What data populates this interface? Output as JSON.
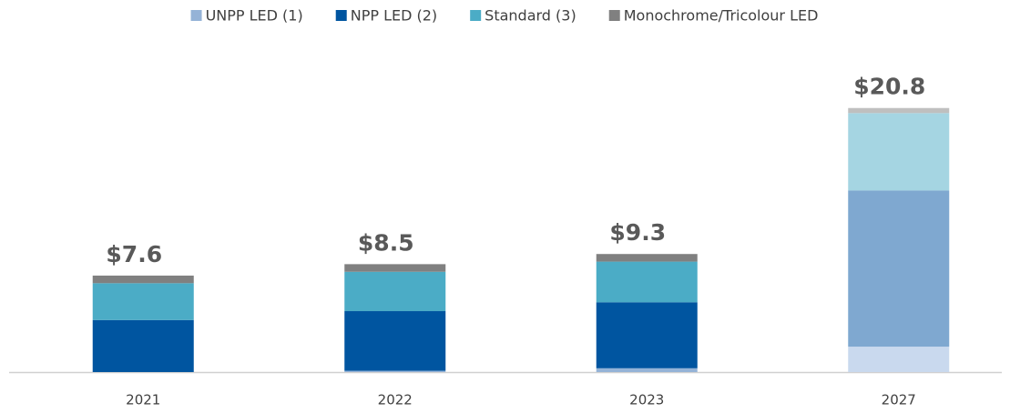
{
  "chart_data": {
    "type": "stacked_bar",
    "categories": [
      "2021",
      "2022",
      "2023",
      "2027"
    ],
    "series": [
      {
        "name": "UNPP LED (1)",
        "color": "#95b3d7",
        "projected_color": "#c9d9ee",
        "values": [
          0,
          0.1,
          0.3,
          2.0
        ]
      },
      {
        "name": "NPP LED (2)",
        "color": "#0055a0",
        "projected_color": "#7fa8d0",
        "values": [
          4.1,
          4.7,
          5.2,
          12.3
        ]
      },
      {
        "name": "Standard (3)",
        "color": "#4bacc6",
        "projected_color": "#a5d5e2",
        "values": [
          2.9,
          3.1,
          3.2,
          6.1
        ]
      },
      {
        "name": "Monochrome/Tricolour LED",
        "color": "#808080",
        "projected_color": "#bfbfbf",
        "values": [
          0.6,
          0.6,
          0.6,
          0.4
        ]
      }
    ],
    "projected_categories": [
      "2027"
    ],
    "totals": [
      7.6,
      8.5,
      9.3,
      20.8
    ],
    "total_labels": [
      "$7.6",
      "$8.5",
      "$9.3",
      "$20.8"
    ],
    "ylim": [
      0,
      22
    ],
    "legend": "top"
  }
}
